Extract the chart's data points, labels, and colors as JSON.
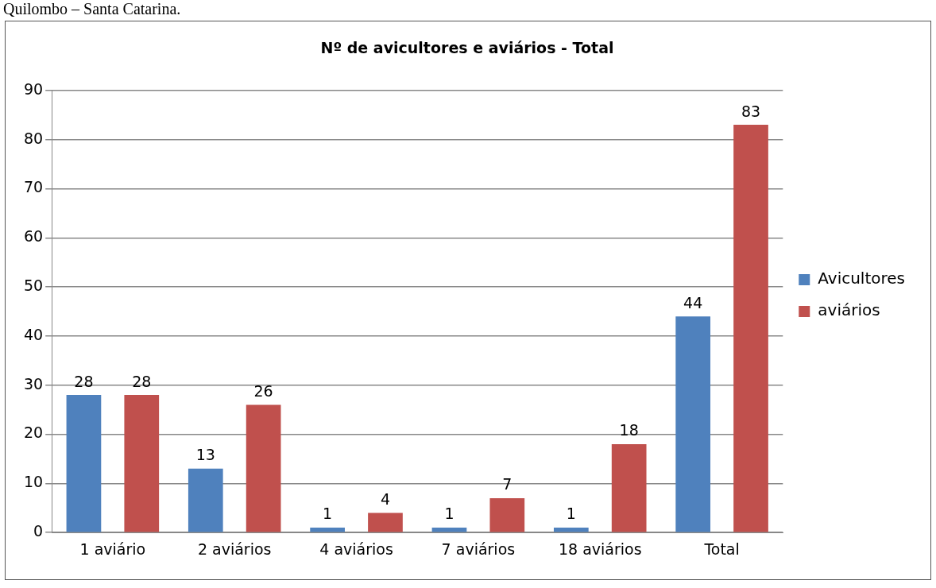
{
  "chart_data": {
    "type": "bar",
    "title": "Nº de avicultores e aviários - Total",
    "categories": [
      "1 aviário",
      "2 aviários",
      "4 aviários",
      "7 aviários",
      "18 aviários",
      "Total"
    ],
    "series": [
      {
        "name": "Avicultores",
        "color": "#4f81bd",
        "values": [
          28,
          13,
          1,
          1,
          1,
          44
        ]
      },
      {
        "name": "aviários",
        "color": "#c0504d",
        "values": [
          28,
          26,
          4,
          7,
          18,
          83
        ]
      }
    ],
    "ylim": [
      0,
      90
    ],
    "yticks": [
      0,
      10,
      20,
      30,
      40,
      50,
      60,
      70,
      80,
      90
    ],
    "grid": "y",
    "legend": "right",
    "data_labels": true,
    "annotations": [
      "Quilombo – Santa Catarina."
    ]
  }
}
